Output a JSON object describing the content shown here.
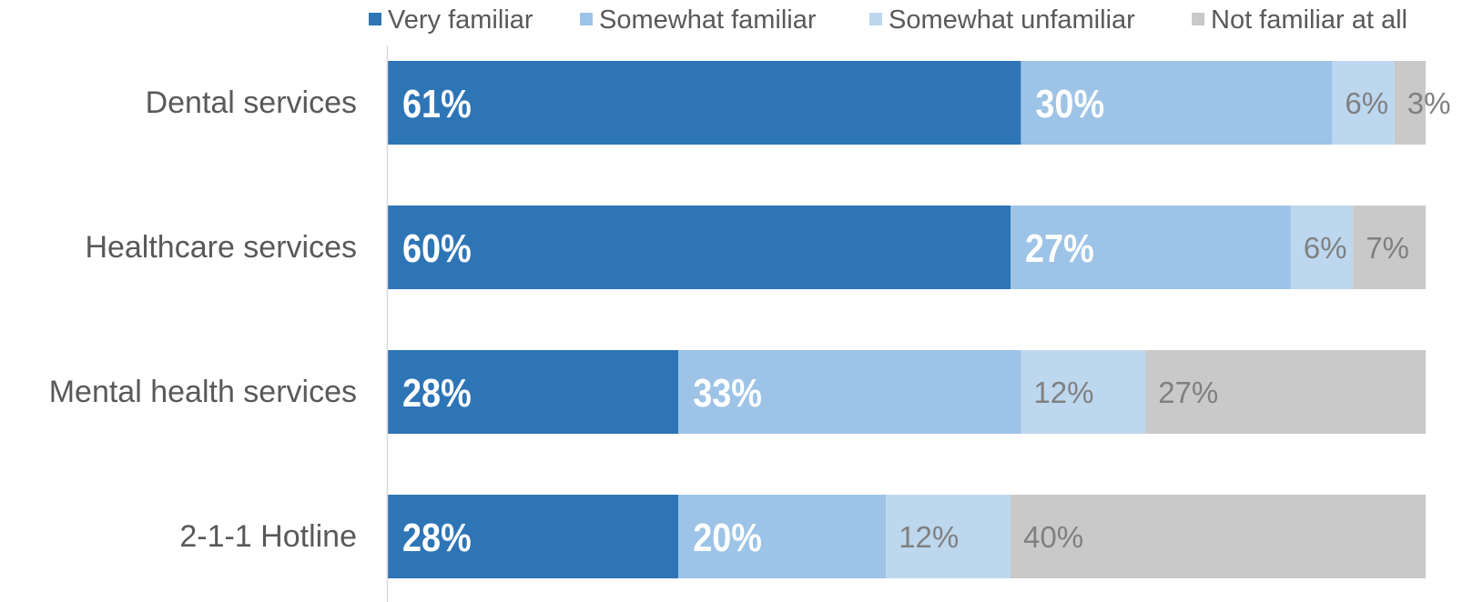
{
  "chart_data": {
    "type": "bar",
    "orientation": "horizontal",
    "stacked": true,
    "legend_position": "top",
    "grid": false,
    "xlim": [
      0,
      100
    ],
    "categories": [
      "Dental services",
      "Healthcare services",
      "Mental health services",
      "2-1-1 Hotline"
    ],
    "series": [
      {
        "name": "Very familiar",
        "color": "#2e75b6",
        "label_color": "#ffffff",
        "label_style": "bold",
        "values": [
          61,
          60,
          28,
          28
        ],
        "labels": [
          "61%",
          "60%",
          "28%",
          "28%"
        ]
      },
      {
        "name": "Somewhat familiar",
        "color": "#9dc3e6",
        "label_color": "#ffffff",
        "label_style": "bold",
        "values": [
          30,
          27,
          33,
          20
        ],
        "labels": [
          "30%",
          "27%",
          "33%",
          "20%"
        ]
      },
      {
        "name": "Somewhat unfamiliar",
        "color": "#bdd7ee",
        "label_color": "#808080",
        "label_style": "normal",
        "values": [
          6,
          6,
          12,
          12
        ],
        "labels": [
          "6%",
          "6%",
          "12%",
          "12%"
        ]
      },
      {
        "name": "Not familiar at all",
        "color": "#c9c9c9",
        "label_color": "#808080",
        "label_style": "normal",
        "values": [
          3,
          7,
          27,
          40
        ],
        "labels": [
          "3%",
          "7%",
          "27%",
          "40%"
        ]
      }
    ]
  }
}
